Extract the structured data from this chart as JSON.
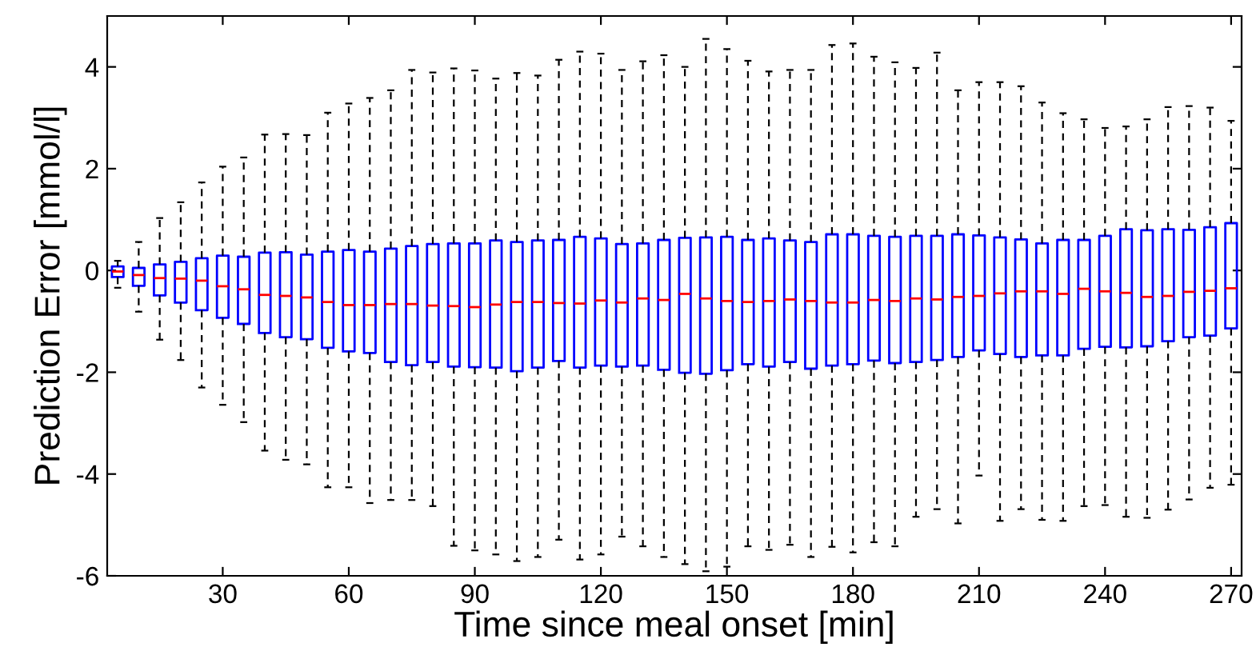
{
  "chart_data": {
    "type": "box",
    "xlabel": "Time since meal onset [min]",
    "ylabel": "Prediction Error [mmol/l]",
    "x": [
      5,
      10,
      15,
      20,
      25,
      30,
      35,
      40,
      45,
      50,
      55,
      60,
      65,
      70,
      75,
      80,
      85,
      90,
      95,
      100,
      105,
      110,
      115,
      120,
      125,
      130,
      135,
      140,
      145,
      150,
      155,
      160,
      165,
      170,
      175,
      180,
      185,
      190,
      195,
      200,
      205,
      210,
      215,
      220,
      225,
      230,
      235,
      240,
      245,
      250,
      255,
      260,
      265,
      270
    ],
    "xlim": [
      2.5,
      272.5
    ],
    "xticks": [
      30,
      60,
      90,
      120,
      150,
      180,
      210,
      240,
      270
    ],
    "ylim": [
      -6,
      5
    ],
    "yticks": [
      -6,
      -4,
      -2,
      0,
      2,
      4
    ],
    "grid": false,
    "series": [
      {
        "color": "#0000ff",
        "boxes": [
          {
            "low": -0.34,
            "q1": -0.13,
            "median": -0.02,
            "q3": 0.08,
            "high": 0.19
          },
          {
            "low": -0.81,
            "q1": -0.3,
            "median": -0.09,
            "q3": 0.05,
            "high": 0.56
          },
          {
            "low": -1.36,
            "q1": -0.49,
            "median": -0.15,
            "q3": 0.12,
            "high": 1.03
          },
          {
            "low": -1.76,
            "q1": -0.63,
            "median": -0.16,
            "q3": 0.17,
            "high": 1.34
          },
          {
            "low": -2.3,
            "q1": -0.78,
            "median": -0.2,
            "q3": 0.24,
            "high": 1.73
          },
          {
            "low": -2.64,
            "q1": -0.93,
            "median": -0.31,
            "q3": 0.29,
            "high": 2.04
          },
          {
            "low": -2.98,
            "q1": -1.05,
            "median": -0.37,
            "q3": 0.27,
            "high": 2.22
          },
          {
            "low": -3.54,
            "q1": -1.23,
            "median": -0.48,
            "q3": 0.35,
            "high": 2.67
          },
          {
            "low": -3.72,
            "q1": -1.31,
            "median": -0.5,
            "q3": 0.36,
            "high": 2.68
          },
          {
            "low": -3.81,
            "q1": -1.35,
            "median": -0.53,
            "q3": 0.31,
            "high": 2.66
          },
          {
            "low": -4.26,
            "q1": -1.52,
            "median": -0.62,
            "q3": 0.37,
            "high": 3.1
          },
          {
            "low": -4.26,
            "q1": -1.59,
            "median": -0.68,
            "q3": 0.4,
            "high": 3.28
          },
          {
            "low": -4.57,
            "q1": -1.62,
            "median": -0.68,
            "q3": 0.37,
            "high": 3.39
          },
          {
            "low": -4.51,
            "q1": -1.8,
            "median": -0.66,
            "q3": 0.43,
            "high": 3.54
          },
          {
            "low": -4.51,
            "q1": -1.86,
            "median": -0.66,
            "q3": 0.48,
            "high": 3.94
          },
          {
            "low": -4.63,
            "q1": -1.8,
            "median": -0.69,
            "q3": 0.52,
            "high": 3.89
          },
          {
            "low": -5.41,
            "q1": -1.89,
            "median": -0.7,
            "q3": 0.53,
            "high": 3.97
          },
          {
            "low": -5.5,
            "q1": -1.9,
            "median": -0.72,
            "q3": 0.53,
            "high": 3.93
          },
          {
            "low": -5.58,
            "q1": -1.91,
            "median": -0.67,
            "q3": 0.59,
            "high": 3.77
          },
          {
            "low": -5.71,
            "q1": -1.98,
            "median": -0.62,
            "q3": 0.56,
            "high": 3.88
          },
          {
            "low": -5.63,
            "q1": -1.91,
            "median": -0.62,
            "q3": 0.59,
            "high": 3.83
          },
          {
            "low": -5.29,
            "q1": -1.78,
            "median": -0.64,
            "q3": 0.6,
            "high": 4.14
          },
          {
            "low": -5.68,
            "q1": -1.91,
            "median": -0.65,
            "q3": 0.66,
            "high": 4.3
          },
          {
            "low": -5.58,
            "q1": -1.87,
            "median": -0.59,
            "q3": 0.63,
            "high": 4.26
          },
          {
            "low": -5.23,
            "q1": -1.89,
            "median": -0.63,
            "q3": 0.52,
            "high": 3.94
          },
          {
            "low": -5.42,
            "q1": -1.87,
            "median": -0.55,
            "q3": 0.53,
            "high": 4.11
          },
          {
            "low": -5.63,
            "q1": -1.95,
            "median": -0.58,
            "q3": 0.6,
            "high": 4.23
          },
          {
            "low": -5.77,
            "q1": -2.01,
            "median": -0.46,
            "q3": 0.64,
            "high": 4.0
          },
          {
            "low": -5.91,
            "q1": -2.03,
            "median": -0.55,
            "q3": 0.65,
            "high": 4.55
          },
          {
            "low": -5.82,
            "q1": -1.96,
            "median": -0.6,
            "q3": 0.66,
            "high": 4.35
          },
          {
            "low": -5.42,
            "q1": -1.84,
            "median": -0.62,
            "q3": 0.6,
            "high": 4.12
          },
          {
            "low": -5.49,
            "q1": -1.89,
            "median": -0.6,
            "q3": 0.63,
            "high": 3.91
          },
          {
            "low": -5.39,
            "q1": -1.8,
            "median": -0.57,
            "q3": 0.59,
            "high": 3.94
          },
          {
            "low": -5.63,
            "q1": -1.93,
            "median": -0.6,
            "q3": 0.56,
            "high": 3.94
          },
          {
            "low": -5.43,
            "q1": -1.87,
            "median": -0.63,
            "q3": 0.71,
            "high": 4.43
          },
          {
            "low": -5.54,
            "q1": -1.84,
            "median": -0.63,
            "q3": 0.71,
            "high": 4.46
          },
          {
            "low": -5.34,
            "q1": -1.77,
            "median": -0.58,
            "q3": 0.68,
            "high": 4.2
          },
          {
            "low": -5.42,
            "q1": -1.82,
            "median": -0.6,
            "q3": 0.66,
            "high": 4.09
          },
          {
            "low": -4.84,
            "q1": -1.8,
            "median": -0.55,
            "q3": 0.68,
            "high": 3.98
          },
          {
            "low": -4.69,
            "q1": -1.76,
            "median": -0.57,
            "q3": 0.68,
            "high": 4.28
          },
          {
            "low": -4.97,
            "q1": -1.7,
            "median": -0.52,
            "q3": 0.71,
            "high": 3.54
          },
          {
            "low": -4.03,
            "q1": -1.57,
            "median": -0.5,
            "q3": 0.69,
            "high": 3.7
          },
          {
            "low": -4.92,
            "q1": -1.64,
            "median": -0.45,
            "q3": 0.65,
            "high": 3.7
          },
          {
            "low": -4.69,
            "q1": -1.7,
            "median": -0.41,
            "q3": 0.61,
            "high": 3.62
          },
          {
            "low": -4.9,
            "q1": -1.67,
            "median": -0.41,
            "q3": 0.53,
            "high": 3.3
          },
          {
            "low": -4.92,
            "q1": -1.67,
            "median": -0.46,
            "q3": 0.6,
            "high": 3.09
          },
          {
            "low": -4.63,
            "q1": -1.54,
            "median": -0.36,
            "q3": 0.6,
            "high": 2.97
          },
          {
            "low": -4.61,
            "q1": -1.5,
            "median": -0.41,
            "q3": 0.68,
            "high": 2.8
          },
          {
            "low": -4.84,
            "q1": -1.51,
            "median": -0.44,
            "q3": 0.81,
            "high": 2.83
          },
          {
            "low": -4.86,
            "q1": -1.49,
            "median": -0.52,
            "q3": 0.79,
            "high": 2.97
          },
          {
            "low": -4.7,
            "q1": -1.39,
            "median": -0.5,
            "q3": 0.81,
            "high": 3.21
          },
          {
            "low": -4.5,
            "q1": -1.31,
            "median": -0.42,
            "q3": 0.8,
            "high": 3.23
          },
          {
            "low": -4.27,
            "q1": -1.28,
            "median": -0.4,
            "q3": 0.85,
            "high": 3.2
          },
          {
            "low": -4.21,
            "q1": -1.14,
            "median": -0.35,
            "q3": 0.93,
            "high": 2.94
          }
        ]
      }
    ]
  }
}
